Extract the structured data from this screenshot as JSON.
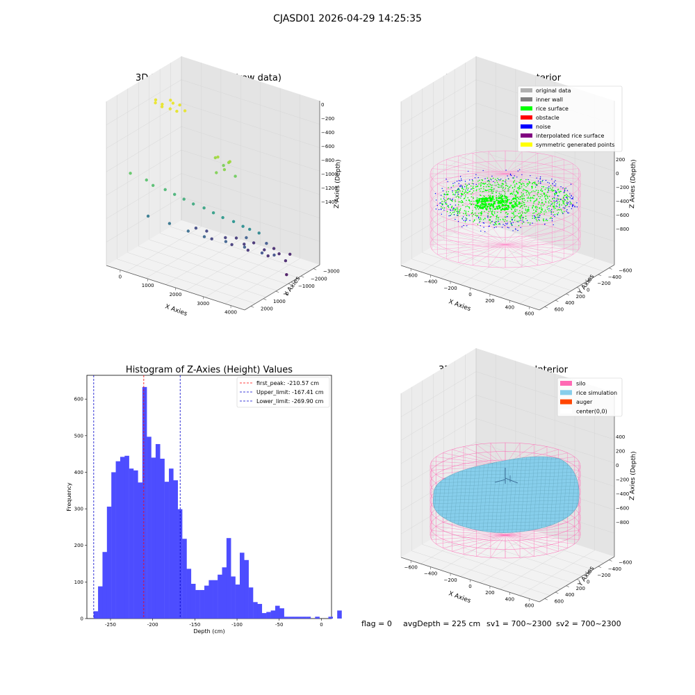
{
  "figure_title": "CJASD01 2026-04-29 14:25:35",
  "footer": {
    "flag": "flag = 0",
    "avg_depth": "avgDepth = 225 cm",
    "sv1": "sv1 = 700~2300",
    "sv2": "sv2 = 700~2300"
  },
  "chart_data": [
    {
      "type": "scatter",
      "projection": "3d",
      "title": "3D Plot of Silo Interior(row data)",
      "xlabel": "X Axies",
      "ylabel": "Y Axies",
      "zlabel": "Z Axies (Depth)",
      "x_ticks": [
        "0",
        "1000",
        "2000",
        "3000",
        "4000"
      ],
      "y_ticks": [
        "−3000",
        "−2000",
        "−1000",
        "0",
        "1000",
        "2000"
      ],
      "z_ticks": [
        "0",
        "−200",
        "−400",
        "−600",
        "−800",
        "−1000",
        "−1200",
        "−1400"
      ],
      "xlim": [
        -600,
        4600
      ],
      "ylim": [
        -3000,
        2400
      ],
      "zlim": [
        -1550,
        50
      ],
      "colormap": "viridis (by depth)",
      "points": [
        [
          0,
          0,
          -80
        ],
        [
          300,
          100,
          -90
        ],
        [
          600,
          -100,
          -70
        ],
        [
          900,
          200,
          -100
        ],
        [
          200,
          400,
          -60
        ],
        [
          700,
          300,
          -85
        ],
        [
          400,
          -300,
          -75
        ],
        [
          1100,
          0,
          -95
        ],
        [
          500,
          500,
          -65
        ],
        [
          800,
          -200,
          -80
        ],
        [
          2400,
          300,
          -420
        ],
        [
          2600,
          500,
          -380
        ],
        [
          2800,
          100,
          -450
        ],
        [
          3000,
          400,
          -400
        ],
        [
          2700,
          800,
          -500
        ],
        [
          2500,
          -100,
          -520
        ],
        [
          3100,
          200,
          -550
        ],
        [
          2900,
          600,
          -470
        ],
        [
          200,
          2200,
          -600
        ],
        [
          700,
          2000,
          -640
        ],
        [
          1300,
          1800,
          -700
        ],
        [
          1900,
          1600,
          -760
        ],
        [
          2500,
          1300,
          -820
        ],
        [
          3100,
          1100,
          -880
        ],
        [
          3700,
          800,
          -940
        ],
        [
          4200,
          600,
          -980
        ],
        [
          1000,
          2100,
          -660
        ],
        [
          1600,
          1700,
          -730
        ],
        [
          2200,
          1500,
          -790
        ],
        [
          2800,
          1200,
          -850
        ],
        [
          3400,
          900,
          -910
        ],
        [
          3900,
          700,
          -960
        ],
        [
          500,
          1500,
          -1050
        ],
        [
          1200,
          1300,
          -1080
        ],
        [
          1800,
          1100,
          -1120
        ],
        [
          2300,
          900,
          -1150
        ],
        [
          2900,
          500,
          -1180
        ],
        [
          3500,
          300,
          -1200
        ],
        [
          4000,
          0,
          -1240
        ],
        [
          4300,
          -300,
          -1260
        ],
        [
          3200,
          -400,
          -1190
        ],
        [
          3800,
          -700,
          -1220
        ],
        [
          1500,
          -800,
          -1300
        ],
        [
          2100,
          -1000,
          -1330
        ],
        [
          2700,
          -1200,
          -1360
        ],
        [
          3300,
          -1500,
          -1390
        ],
        [
          3700,
          -1800,
          -1420
        ],
        [
          1900,
          -400,
          -1310
        ],
        [
          2500,
          -700,
          -1340
        ],
        [
          3000,
          -900,
          -1370
        ],
        [
          1200,
          -600,
          -1280
        ],
        [
          3600,
          -1200,
          -1400
        ],
        [
          4100,
          -1500,
          -1430
        ],
        [
          2300,
          -1400,
          -1350
        ],
        [
          2800,
          -1700,
          -1380
        ],
        [
          3400,
          -2000,
          -1410
        ],
        [
          3900,
          -2200,
          -1440
        ],
        [
          4400,
          -1000,
          -1500
        ]
      ]
    },
    {
      "type": "scatter",
      "projection": "3d",
      "title": "3D classify of Silo Interior",
      "xlabel": "X Axies",
      "ylabel": "Y Axies",
      "zlabel": "Z Axies (Depth)",
      "x_ticks": [
        "−600",
        "−400",
        "−200",
        "0",
        "200",
        "400",
        "600"
      ],
      "y_ticks": [
        "−600",
        "−400",
        "−200",
        "0",
        "200",
        "400",
        "600"
      ],
      "z_ticks": [
        "200",
        "0",
        "−200",
        "−400",
        "−600",
        "−800"
      ],
      "xlim": [
        -700,
        700
      ],
      "ylim": [
        -700,
        700
      ],
      "zlim": [
        -950,
        300
      ],
      "legend": [
        {
          "label": "original data",
          "color": "#b0b0b0"
        },
        {
          "label": "inner wall",
          "color": "#808080"
        },
        {
          "label": "rice surface",
          "color": "#00ff00"
        },
        {
          "label": "obstacle",
          "color": "#ff0000"
        },
        {
          "label": "noise",
          "color": "#0000ff"
        },
        {
          "label": "interpolated rice surface",
          "color": "#800080"
        },
        {
          "label": "symmetric generated points",
          "color": "#ffff00"
        }
      ],
      "legend_position": "top-right",
      "silo_color": "#ff88c8"
    },
    {
      "type": "bar",
      "title": "Histogram of Z-Axies (Height) Values",
      "xlabel": "Depth (cm)",
      "ylabel": "Frequency",
      "bar_color": "#4d4dff",
      "bin_start": -270,
      "bin_width": 5.25,
      "values": [
        20,
        88,
        182,
        306,
        400,
        430,
        442,
        445,
        410,
        405,
        372,
        633,
        497,
        440,
        477,
        437,
        374,
        410,
        378,
        299,
        218,
        136,
        95,
        78,
        78,
        90,
        105,
        105,
        120,
        140,
        220,
        115,
        93,
        180,
        160,
        85,
        45,
        40,
        15,
        18,
        22,
        35,
        28,
        5,
        5,
        5,
        5,
        5,
        5,
        0,
        5,
        0,
        0,
        5,
        0,
        22
      ],
      "x_ticks": [
        -250,
        -200,
        -150,
        -100,
        -50,
        0
      ],
      "y_ticks": [
        0,
        100,
        200,
        300,
        400,
        500,
        600
      ],
      "xlim": [
        -278,
        12
      ],
      "ylim": [
        0,
        665
      ],
      "lines": [
        {
          "label": "first_peak: -210.57 cm",
          "x": -210.57,
          "color": "#ff0000"
        },
        {
          "label": "Upper_limit: -167.41 cm",
          "x": -167.41,
          "color": "#0000cc"
        },
        {
          "label": "Lower_limit: -269.90 cm",
          "x": -269.9,
          "color": "#0000cc"
        }
      ],
      "legend_position": "top-right"
    },
    {
      "type": "area",
      "projection": "3d",
      "title": "3D simulation of Silo Interior",
      "xlabel": "X Axies",
      "ylabel": "Y Axies",
      "zlabel": "Z Axies (Depth)",
      "x_ticks": [
        "−600",
        "−400",
        "−200",
        "0",
        "200",
        "400",
        "600"
      ],
      "y_ticks": [
        "−600",
        "−400",
        "−200",
        "0",
        "200",
        "400",
        "600"
      ],
      "z_ticks": [
        "400",
        "200",
        "0",
        "−200",
        "−400",
        "−600",
        "−800"
      ],
      "legend": [
        {
          "label": "silo",
          "color": "#ff69b4"
        },
        {
          "label": "rice simulation",
          "color": "#87ceeb"
        },
        {
          "label": "auger",
          "color": "#ff4500"
        },
        {
          "label": "center(0,0)",
          "color": "#ffffff"
        }
      ],
      "legend_position": "top-right"
    }
  ]
}
